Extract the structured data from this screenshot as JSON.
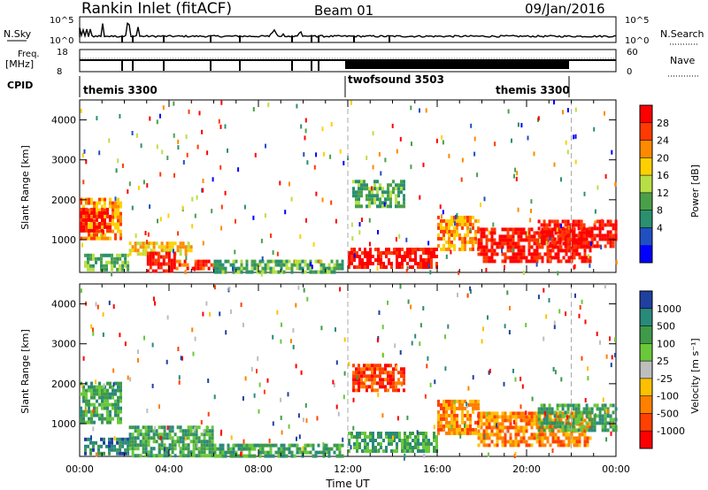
{
  "header": {
    "station": "Rankin Inlet (fitACF)",
    "beam": "Beam 01",
    "date": "09/Jan/2016"
  },
  "top_panels": {
    "nsky_label": "N.Sky",
    "nsky_ticks": [
      "10^5",
      "10^0"
    ],
    "nsearch_label": "N.Search",
    "nsearch_ticks": [
      "10^5",
      "10^0"
    ],
    "freq_label": "Freq.",
    "freq_unit": "[MHz]",
    "freq_ticks": [
      "18",
      "8"
    ],
    "nave_label": "Nave",
    "nave_ticks": [
      "60",
      "0"
    ],
    "cpid_label": "CPID",
    "cpid_segments": [
      {
        "name": "themis 3300",
        "start_hour": 0,
        "end_hour": 12
      },
      {
        "name": "twofsound 3503",
        "start_hour": 12,
        "end_hour": 22
      },
      {
        "name": "themis 3300",
        "start_hour": 22,
        "end_hour": 24
      }
    ]
  },
  "power_panel": {
    "ylabel": "Slant Range [km]",
    "cbar_label": "Power [dB]",
    "cbar_ticks": [
      "28",
      "24",
      "20",
      "16",
      "12",
      "8",
      "4"
    ],
    "cbar_colors": [
      "#ff0000",
      "#ff3a00",
      "#ff8a00",
      "#ffd000",
      "#b8df45",
      "#4aa04a",
      "#2a9070",
      "#2050c0",
      "#0000ff"
    ]
  },
  "velocity_panel": {
    "ylabel": "Slant Range [km]",
    "cbar_label": "Velocity [m s⁻¹]",
    "cbar_ticks": [
      "1000",
      "500",
      "100",
      "25",
      "-25",
      "-100",
      "-500",
      "-1000"
    ],
    "cbar_colors": [
      "#2040a0",
      "#2a8a7a",
      "#3f9a4a",
      "#6ac83a",
      "#bebebe",
      "#ffc000",
      "#ff8000",
      "#ff4000",
      "#ff0000"
    ]
  },
  "x_axis": {
    "label": "Time UT",
    "ticks": [
      "00:00",
      "04:00",
      "08:00",
      "12:00",
      "16:00",
      "20:00",
      "00:00"
    ]
  },
  "chart_data": [
    {
      "type": "heatmap",
      "title": "Power",
      "xlabel": "Time UT",
      "ylabel": "Slant Range [km]",
      "xlim_hours": [
        0,
        24
      ],
      "ylim_km": [
        180,
        4500
      ],
      "yticks": [
        1000,
        2000,
        3000,
        4000
      ],
      "colorbar": {
        "label": "Power [dB]",
        "ticks": [
          4,
          8,
          12,
          16,
          20,
          24,
          28
        ]
      },
      "regions": [
        {
          "t0": 0.0,
          "t1": 1.9,
          "r0": 1000,
          "r1": 2050,
          "dB": 22
        },
        {
          "t0": 0.0,
          "t1": 1.4,
          "r0": 1200,
          "r1": 1800,
          "dB": 28
        },
        {
          "t0": 0.2,
          "t1": 2.2,
          "r0": 250,
          "r1": 650,
          "dB": 14
        },
        {
          "t0": 2.2,
          "t1": 5.0,
          "r0": 600,
          "r1": 950,
          "dB": 18
        },
        {
          "t0": 3.0,
          "t1": 4.3,
          "r0": 200,
          "r1": 700,
          "dB": 28
        },
        {
          "t0": 4.3,
          "t1": 6.0,
          "r0": 250,
          "r1": 500,
          "dB": 26
        },
        {
          "t0": 6.0,
          "t1": 11.8,
          "r0": 200,
          "r1": 500,
          "dB": 12
        },
        {
          "t0": 12.0,
          "t1": 16.0,
          "r0": 300,
          "r1": 800,
          "dB": 28
        },
        {
          "t0": 12.2,
          "t1": 14.5,
          "r0": 1800,
          "r1": 2500,
          "dB": 14
        },
        {
          "t0": 16.0,
          "t1": 17.8,
          "r0": 800,
          "r1": 1600,
          "dB": 22
        },
        {
          "t0": 17.8,
          "t1": 22.8,
          "r0": 500,
          "r1": 1300,
          "dB": 28
        },
        {
          "t0": 20.5,
          "t1": 24.0,
          "r0": 800,
          "r1": 1500,
          "dB": 28
        }
      ]
    },
    {
      "type": "heatmap",
      "title": "Velocity",
      "xlabel": "Time UT",
      "ylabel": "Slant Range [km]",
      "xlim_hours": [
        0,
        24
      ],
      "ylim_km": [
        180,
        4500
      ],
      "yticks": [
        1000,
        2000,
        3000,
        4000
      ],
      "colorbar": {
        "label": "Velocity [m s⁻¹]",
        "ticks": [
          -1000,
          -500,
          -100,
          -25,
          25,
          100,
          500,
          1000
        ]
      },
      "regions": [
        {
          "t0": 0.0,
          "t1": 1.9,
          "r0": 1000,
          "r1": 2050,
          "ms": 100
        },
        {
          "t0": 0.2,
          "t1": 2.2,
          "r0": 250,
          "r1": 650,
          "ms": 500
        },
        {
          "t0": 2.2,
          "t1": 6.0,
          "r0": 200,
          "r1": 950,
          "ms": 100
        },
        {
          "t0": 6.0,
          "t1": 11.8,
          "r0": 200,
          "r1": 500,
          "ms": 100
        },
        {
          "t0": 12.0,
          "t1": 16.0,
          "r0": 300,
          "r1": 800,
          "ms": 100
        },
        {
          "t0": 12.2,
          "t1": 14.5,
          "r0": 1800,
          "r1": 2500,
          "ms": -500
        },
        {
          "t0": 16.0,
          "t1": 17.8,
          "r0": 800,
          "r1": 1600,
          "ms": -100
        },
        {
          "t0": 17.8,
          "t1": 22.8,
          "r0": 500,
          "r1": 1300,
          "ms": -100
        },
        {
          "t0": 20.5,
          "t1": 24.0,
          "r0": 800,
          "r1": 1500,
          "ms": 100
        }
      ]
    }
  ]
}
